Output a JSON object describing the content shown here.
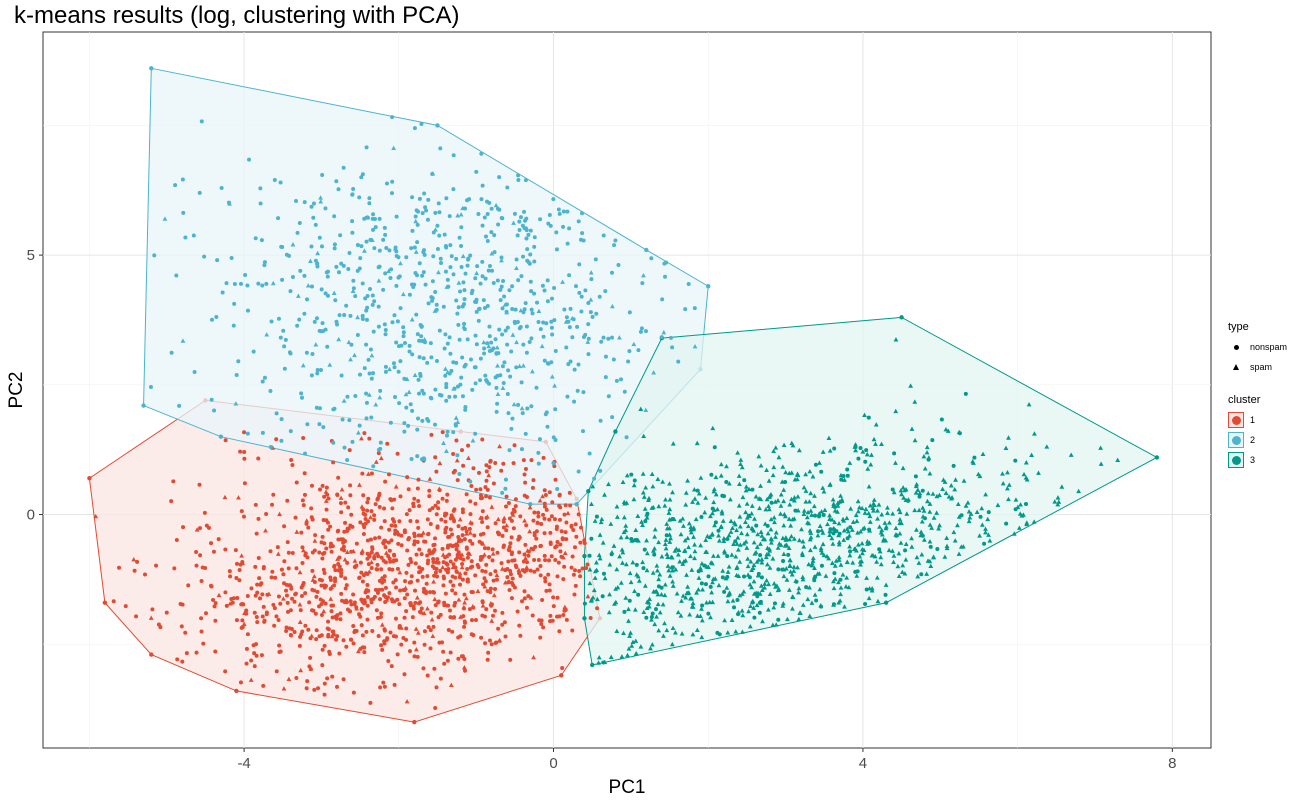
{
  "chart_data": {
    "type": "scatter",
    "title": "k-means results (log, clustering with PCA)",
    "xlabel": "PC1",
    "ylabel": "PC2",
    "xlim": [
      -6.6,
      8.5
    ],
    "ylim": [
      -4.5,
      9.3
    ],
    "xticks": [
      -4,
      0,
      4,
      8
    ],
    "xtick_labels": [
      "-4",
      "0",
      "4",
      "8"
    ],
    "yticks": [
      0,
      5
    ],
    "ytick_labels": [
      "0",
      "5"
    ],
    "grid": true,
    "legend_placement": "right",
    "legend_type_title": "type",
    "legend_type_entries": [
      {
        "label": "nonspam",
        "shape": "circle"
      },
      {
        "label": "spam",
        "shape": "triangle"
      }
    ],
    "legend_cluster_title": "cluster",
    "clusters": [
      {
        "name": "1",
        "color": "#E24B33",
        "fill": "#FBE6E2",
        "hull": [
          [
            -6.0,
            0.7
          ],
          [
            -5.8,
            -1.7
          ],
          [
            -5.2,
            -2.7
          ],
          [
            -4.1,
            -3.4
          ],
          [
            -1.8,
            -4.0
          ],
          [
            0.1,
            -3.1
          ],
          [
            0.6,
            -2.0
          ],
          [
            0.4,
            -0.5
          ],
          [
            0.3,
            0.3
          ],
          [
            -0.1,
            1.4
          ],
          [
            -1.2,
            1.6
          ],
          [
            -4.5,
            2.2
          ]
        ],
        "point_cloud": {
          "center": [
            -1.7,
            -1.0
          ],
          "spread": [
            1.55,
            1.05
          ],
          "count": 1300
        }
      },
      {
        "name": "2",
        "color": "#4DB3CF",
        "fill": "#E8F6F9",
        "hull": [
          [
            -5.2,
            8.6
          ],
          [
            -1.5,
            7.5
          ],
          [
            1.2,
            5.1
          ],
          [
            2.0,
            4.4
          ],
          [
            1.9,
            2.8
          ],
          [
            0.3,
            0.2
          ],
          [
            -0.3,
            0.2
          ],
          [
            -4.3,
            1.5
          ],
          [
            -5.3,
            2.1
          ]
        ],
        "point_cloud": {
          "center": [
            -1.4,
            3.9
          ],
          "spread": [
            1.5,
            1.6
          ],
          "count": 850
        }
      },
      {
        "name": "3",
        "color": "#00998A",
        "fill": "#E2F4F1",
        "hull": [
          [
            1.4,
            3.4
          ],
          [
            4.5,
            3.8
          ],
          [
            7.8,
            1.1
          ],
          [
            4.3,
            -1.7
          ],
          [
            0.5,
            -2.9
          ],
          [
            0.4,
            -2.0
          ],
          [
            0.4,
            -0.8
          ],
          [
            0.45,
            0.45
          ],
          [
            0.8,
            1.6
          ]
        ],
        "point_cloud": {
          "center": [
            2.9,
            -0.6
          ],
          "spread": [
            1.75,
            0.95
          ],
          "count": 1100
        }
      }
    ]
  }
}
